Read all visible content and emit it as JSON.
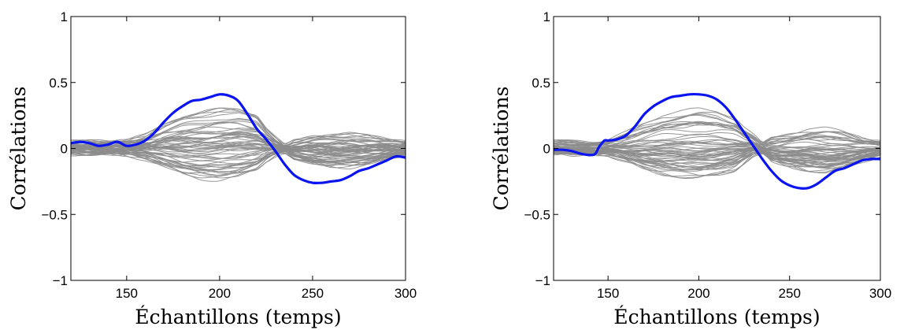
{
  "chart_data": [
    {
      "type": "line",
      "xlabel": "Échantillons (temps)",
      "ylabel": "Corrélations",
      "xlim": [
        120,
        300
      ],
      "ylim": [
        -1,
        1
      ],
      "xticks": [
        "150",
        "200",
        "250",
        "300"
      ],
      "xtick_values": [
        150,
        200,
        250,
        300
      ],
      "yticks": [
        "1",
        "0.5",
        "0",
        "−0.5",
        "−1"
      ],
      "ytick_values": [
        1,
        0.5,
        0,
        -0.5,
        -1
      ],
      "colors": {
        "highlight": "#0a14f0",
        "background_series": "#8c8c8c"
      },
      "highlight_series": {
        "x": [
          120,
          125,
          130,
          135,
          140,
          145,
          150,
          155,
          160,
          165,
          170,
          175,
          180,
          185,
          190,
          195,
          200,
          205,
          210,
          215,
          220,
          225,
          230,
          235,
          240,
          245,
          250,
          255,
          260,
          265,
          270,
          275,
          280,
          285,
          290,
          295,
          300
        ],
        "y": [
          0.04,
          0.05,
          0.04,
          0.02,
          0.03,
          0.05,
          0.02,
          0.03,
          0.06,
          0.12,
          0.2,
          0.27,
          0.32,
          0.36,
          0.37,
          0.39,
          0.41,
          0.4,
          0.36,
          0.26,
          0.15,
          0.07,
          -0.02,
          -0.12,
          -0.2,
          -0.24,
          -0.26,
          -0.26,
          -0.25,
          -0.24,
          -0.21,
          -0.17,
          -0.15,
          -0.12,
          -0.09,
          -0.06,
          -0.07
        ]
      },
      "background_band": {
        "x": [
          120,
          130,
          140,
          150,
          160,
          170,
          180,
          190,
          200,
          210,
          220,
          225,
          230,
          235,
          240,
          250,
          260,
          270,
          280,
          290,
          300
        ],
        "upper": [
          0.05,
          0.06,
          0.05,
          0.06,
          0.1,
          0.18,
          0.24,
          0.27,
          0.3,
          0.3,
          0.25,
          0.15,
          0.08,
          0.02,
          0.06,
          0.09,
          0.1,
          0.11,
          0.1,
          0.07,
          0.05
        ],
        "lower": [
          -0.04,
          -0.05,
          -0.04,
          -0.05,
          -0.08,
          -0.14,
          -0.2,
          -0.23,
          -0.24,
          -0.22,
          -0.17,
          -0.1,
          -0.05,
          -0.02,
          -0.08,
          -0.12,
          -0.14,
          -0.14,
          -0.12,
          -0.08,
          -0.05
        ]
      },
      "background_count": 60
    },
    {
      "type": "line",
      "xlabel": "Échantillons (temps)",
      "ylabel": "Corrélations",
      "xlim": [
        120,
        300
      ],
      "ylim": [
        -1,
        1
      ],
      "xticks": [
        "150",
        "200",
        "250",
        "300"
      ],
      "xtick_values": [
        150,
        200,
        250,
        300
      ],
      "yticks": [
        "1",
        "0.5",
        "0",
        "−0.5",
        "−1"
      ],
      "ytick_values": [
        1,
        0.5,
        0,
        -0.5,
        -1
      ],
      "colors": {
        "highlight": "#0a14f0",
        "background_series": "#8c8c8c"
      },
      "highlight_series": {
        "x": [
          120,
          125,
          130,
          135,
          140,
          143,
          145,
          148,
          150,
          155,
          160,
          165,
          170,
          175,
          180,
          185,
          190,
          195,
          200,
          205,
          210,
          215,
          220,
          225,
          230,
          235,
          240,
          245,
          250,
          255,
          260,
          265,
          270,
          275,
          280,
          285,
          290,
          295,
          300
        ],
        "y": [
          -0.01,
          -0.01,
          -0.02,
          -0.04,
          -0.05,
          -0.04,
          0.01,
          0.06,
          0.06,
          0.07,
          0.1,
          0.17,
          0.26,
          0.32,
          0.36,
          0.39,
          0.4,
          0.41,
          0.41,
          0.4,
          0.37,
          0.31,
          0.22,
          0.12,
          0.02,
          -0.08,
          -0.17,
          -0.24,
          -0.28,
          -0.3,
          -0.3,
          -0.27,
          -0.22,
          -0.17,
          -0.15,
          -0.12,
          -0.09,
          -0.08,
          -0.08
        ]
      },
      "background_band": {
        "x": [
          120,
          130,
          140,
          150,
          160,
          170,
          180,
          190,
          200,
          210,
          220,
          225,
          230,
          235,
          240,
          250,
          260,
          270,
          280,
          290,
          300
        ],
        "upper": [
          0.05,
          0.06,
          0.05,
          0.06,
          0.12,
          0.2,
          0.26,
          0.28,
          0.3,
          0.29,
          0.24,
          0.16,
          0.1,
          0.03,
          0.08,
          0.12,
          0.15,
          0.15,
          0.13,
          0.09,
          0.06
        ],
        "lower": [
          -0.04,
          -0.05,
          -0.04,
          -0.05,
          -0.1,
          -0.16,
          -0.2,
          -0.22,
          -0.23,
          -0.21,
          -0.17,
          -0.11,
          -0.05,
          -0.03,
          -0.1,
          -0.14,
          -0.17,
          -0.18,
          -0.15,
          -0.1,
          -0.06
        ]
      },
      "background_count": 60
    }
  ]
}
